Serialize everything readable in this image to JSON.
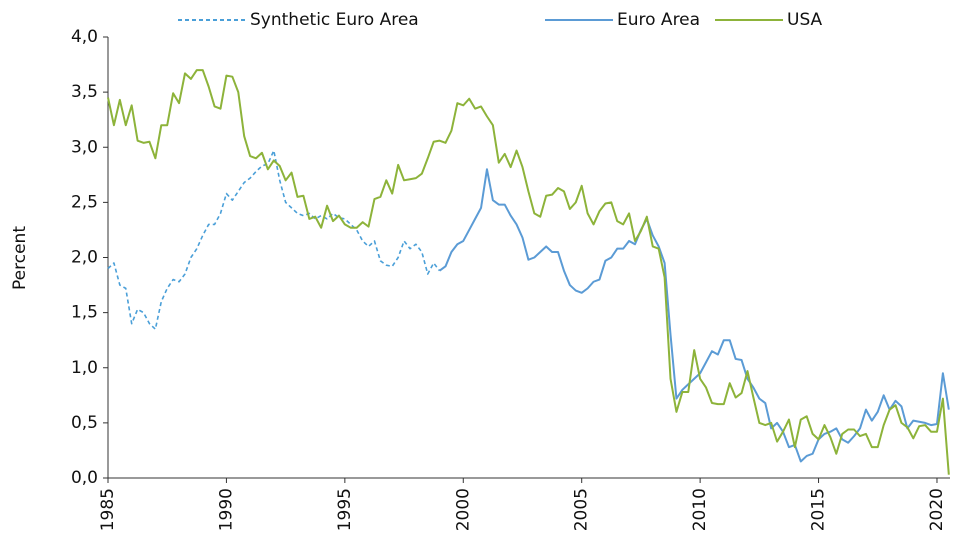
{
  "chart_data": {
    "type": "line",
    "y_label": "Percent",
    "xlim": [
      1985,
      2020.55
    ],
    "xticks": [
      1985,
      1990,
      1995,
      2000,
      2005,
      2010,
      2015,
      2020
    ],
    "ylim": [
      0,
      4
    ],
    "yticks": [
      {
        "value": 0,
        "label": "0,0"
      },
      {
        "value": 0.5,
        "label": "0,5"
      },
      {
        "value": 1,
        "label": "1,0"
      },
      {
        "value": 1.5,
        "label": "1,5"
      },
      {
        "value": 2,
        "label": "2,0"
      },
      {
        "value": 2.5,
        "label": "2,5"
      },
      {
        "value": 3,
        "label": "3,0"
      },
      {
        "value": 3.5,
        "label": "3,5"
      },
      {
        "value": 4,
        "label": "4,0"
      }
    ],
    "grid": false,
    "legend": "top",
    "series": [
      {
        "name": "Synthetic Euro Area",
        "color": "#4a9fd8",
        "dashed": true,
        "x": [
          1985,
          1985.25,
          1985.5,
          1985.75,
          1986,
          1986.25,
          1986.5,
          1986.75,
          1987,
          1987.25,
          1987.5,
          1987.75,
          1988,
          1988.25,
          1988.5,
          1988.75,
          1989,
          1989.25,
          1989.5,
          1989.75,
          1990,
          1990.25,
          1990.5,
          1990.75,
          1991,
          1991.25,
          1991.5,
          1991.75,
          1992,
          1992.25,
          1992.5,
          1992.75,
          1993,
          1993.25,
          1993.5,
          1993.75,
          1994,
          1994.25,
          1994.5,
          1994.75,
          1995,
          1995.25,
          1995.5,
          1995.75,
          1996,
          1996.25,
          1996.5,
          1996.75,
          1997,
          1997.25,
          1997.5,
          1997.75,
          1998,
          1998.25,
          1998.5,
          1998.75,
          1999
        ],
        "values": [
          1.9,
          1.95,
          1.75,
          1.72,
          1.4,
          1.53,
          1.5,
          1.4,
          1.35,
          1.6,
          1.72,
          1.8,
          1.78,
          1.85,
          2.0,
          2.08,
          2.2,
          2.3,
          2.3,
          2.4,
          2.58,
          2.52,
          2.6,
          2.68,
          2.72,
          2.78,
          2.83,
          2.85,
          2.97,
          2.7,
          2.5,
          2.45,
          2.4,
          2.38,
          2.4,
          2.35,
          2.38,
          2.35,
          2.4,
          2.36,
          2.35,
          2.3,
          2.25,
          2.15,
          2.1,
          2.15,
          1.97,
          1.93,
          1.92,
          2.0,
          2.15,
          2.08,
          2.12,
          2.05,
          1.85,
          1.95,
          1.88
        ]
      },
      {
        "name": "Euro Area",
        "color": "#5b9bd5",
        "dashed": false,
        "x": [
          1999,
          1999.25,
          1999.5,
          1999.75,
          2000,
          2000.25,
          2000.5,
          2000.75,
          2001,
          2001.25,
          2001.5,
          2001.75,
          2002,
          2002.25,
          2002.5,
          2002.75,
          2003,
          2003.25,
          2003.5,
          2003.75,
          2004,
          2004.25,
          2004.5,
          2004.75,
          2005,
          2005.25,
          2005.5,
          2005.75,
          2006,
          2006.25,
          2006.5,
          2006.75,
          2007,
          2007.25,
          2007.5,
          2007.75,
          2008,
          2008.25,
          2008.5,
          2008.75,
          2009,
          2009.25,
          2009.5,
          2009.75,
          2010,
          2010.25,
          2010.5,
          2010.75,
          2011,
          2011.25,
          2011.5,
          2011.75,
          2012,
          2012.25,
          2012.5,
          2012.75,
          2013,
          2013.25,
          2013.5,
          2013.75,
          2014,
          2014.25,
          2014.5,
          2014.75,
          2015,
          2015.25,
          2015.5,
          2015.75,
          2016,
          2016.25,
          2016.5,
          2016.75,
          2017,
          2017.25,
          2017.5,
          2017.75,
          2018,
          2018.25,
          2018.5,
          2018.75,
          2019,
          2019.25,
          2019.5,
          2019.75,
          2020,
          2020.25,
          2020.5
        ],
        "values": [
          1.88,
          1.92,
          2.05,
          2.12,
          2.15,
          2.25,
          2.35,
          2.45,
          2.8,
          2.52,
          2.48,
          2.48,
          2.38,
          2.3,
          2.18,
          1.98,
          2.0,
          2.05,
          2.1,
          2.05,
          2.05,
          1.88,
          1.75,
          1.7,
          1.68,
          1.72,
          1.78,
          1.8,
          1.97,
          2.0,
          2.08,
          2.08,
          2.15,
          2.12,
          2.25,
          2.35,
          2.2,
          2.1,
          1.95,
          1.3,
          0.72,
          0.8,
          0.85,
          0.9,
          0.95,
          1.05,
          1.15,
          1.12,
          1.25,
          1.25,
          1.08,
          1.07,
          0.9,
          0.82,
          0.72,
          0.68,
          0.45,
          0.5,
          0.42,
          0.28,
          0.3,
          0.15,
          0.2,
          0.22,
          0.35,
          0.4,
          0.42,
          0.45,
          0.35,
          0.32,
          0.38,
          0.45,
          0.62,
          0.52,
          0.6,
          0.75,
          0.62,
          0.7,
          0.65,
          0.45,
          0.52,
          0.51,
          0.5,
          0.48,
          0.49,
          0.95,
          0.62
        ]
      },
      {
        "name": "USA",
        "color": "#8db33a",
        "dashed": false,
        "x": [
          1985,
          1985.25,
          1985.5,
          1985.75,
          1986,
          1986.25,
          1986.5,
          1986.75,
          1987,
          1987.25,
          1987.5,
          1987.75,
          1988,
          1988.25,
          1988.5,
          1988.75,
          1989,
          1989.25,
          1989.5,
          1989.75,
          1990,
          1990.25,
          1990.5,
          1990.75,
          1991,
          1991.25,
          1991.5,
          1991.75,
          1992,
          1992.25,
          1992.5,
          1992.75,
          1993,
          1993.25,
          1993.5,
          1993.75,
          1994,
          1994.25,
          1994.5,
          1994.75,
          1995,
          1995.25,
          1995.5,
          1995.75,
          1996,
          1996.25,
          1996.5,
          1996.75,
          1997,
          1997.25,
          1997.5,
          1997.75,
          1998,
          1998.25,
          1998.5,
          1998.75,
          1999,
          1999.25,
          1999.5,
          1999.75,
          2000,
          2000.25,
          2000.5,
          2000.75,
          2001,
          2001.25,
          2001.5,
          2001.75,
          2002,
          2002.25,
          2002.5,
          2002.75,
          2003,
          2003.25,
          2003.5,
          2003.75,
          2004,
          2004.25,
          2004.5,
          2004.75,
          2005,
          2005.25,
          2005.5,
          2005.75,
          2006,
          2006.25,
          2006.5,
          2006.75,
          2007,
          2007.25,
          2007.5,
          2007.75,
          2008,
          2008.25,
          2008.5,
          2008.75,
          2009,
          2009.25,
          2009.5,
          2009.75,
          2010,
          2010.25,
          2010.5,
          2010.75,
          2011,
          2011.25,
          2011.5,
          2011.75,
          2012,
          2012.25,
          2012.5,
          2012.75,
          2013,
          2013.25,
          2013.5,
          2013.75,
          2014,
          2014.25,
          2014.5,
          2014.75,
          2015,
          2015.25,
          2015.5,
          2015.75,
          2016,
          2016.25,
          2016.5,
          2016.75,
          2017,
          2017.25,
          2017.5,
          2017.75,
          2018,
          2018.25,
          2018.5,
          2018.75,
          2019,
          2019.25,
          2019.5,
          2019.75,
          2020,
          2020.25,
          2020.5
        ],
        "values": [
          3.45,
          3.2,
          3.43,
          3.2,
          3.38,
          3.06,
          3.04,
          3.05,
          2.9,
          3.2,
          3.2,
          3.49,
          3.4,
          3.67,
          3.62,
          3.7,
          3.7,
          3.55,
          3.37,
          3.35,
          3.65,
          3.64,
          3.5,
          3.1,
          2.92,
          2.9,
          2.95,
          2.8,
          2.88,
          2.83,
          2.7,
          2.77,
          2.55,
          2.56,
          2.35,
          2.37,
          2.27,
          2.47,
          2.33,
          2.38,
          2.3,
          2.27,
          2.27,
          2.32,
          2.28,
          2.53,
          2.55,
          2.7,
          2.58,
          2.84,
          2.7,
          2.71,
          2.72,
          2.76,
          2.9,
          3.05,
          3.06,
          3.04,
          3.15,
          3.4,
          3.38,
          3.44,
          3.35,
          3.37,
          3.28,
          3.2,
          2.86,
          2.94,
          2.82,
          2.97,
          2.82,
          2.6,
          2.4,
          2.37,
          2.56,
          2.57,
          2.63,
          2.6,
          2.44,
          2.5,
          2.65,
          2.4,
          2.3,
          2.42,
          2.49,
          2.5,
          2.33,
          2.3,
          2.4,
          2.15,
          2.24,
          2.37,
          2.1,
          2.08,
          1.82,
          0.9,
          0.6,
          0.78,
          0.78,
          1.16,
          0.9,
          0.82,
          0.68,
          0.67,
          0.67,
          0.86,
          0.73,
          0.77,
          0.97,
          0.73,
          0.5,
          0.48,
          0.5,
          0.33,
          0.42,
          0.53,
          0.28,
          0.53,
          0.56,
          0.4,
          0.35,
          0.48,
          0.37,
          0.22,
          0.4,
          0.44,
          0.44,
          0.38,
          0.4,
          0.28,
          0.28,
          0.48,
          0.62,
          0.66,
          0.5,
          0.46,
          0.36,
          0.47,
          0.48,
          0.42,
          0.42,
          0.72,
          0.03
        ]
      }
    ]
  }
}
